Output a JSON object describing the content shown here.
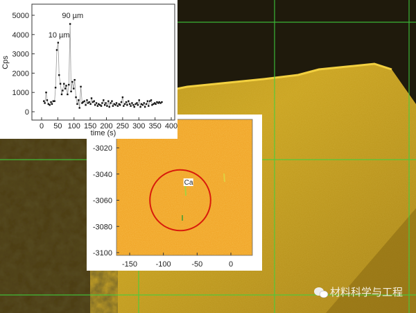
{
  "colors": {
    "grid_lines": "#3fd13f",
    "oxide_layer": "#1f1a0c",
    "metal": "#c9a21e",
    "map_fill": "#f0a020",
    "circle": "#d81b0b"
  },
  "watermark": {
    "text": "材料科学与工程",
    "icon": "wechat-icon"
  },
  "chart_data": [
    {
      "type": "line",
      "xlabel": "time (s)",
      "ylabel": "Cps",
      "xlim": [
        -10,
        410
      ],
      "ylim": [
        -500,
        5400
      ],
      "xticks": [
        0,
        50,
        100,
        150,
        200,
        250,
        300,
        350,
        400
      ],
      "yticks": [
        0,
        1000,
        2000,
        3000,
        4000,
        5000
      ],
      "annotations": [
        {
          "text": "10 µm",
          "x": 38,
          "y": 4000
        },
        {
          "text": "90 µm",
          "x": 80,
          "y": 5000
        }
      ],
      "x": [
        7,
        10,
        14,
        17,
        21,
        25,
        29,
        32,
        36,
        40,
        43,
        47,
        51,
        54,
        58,
        62,
        65,
        69,
        73,
        76,
        80,
        84,
        88,
        91,
        95,
        99,
        102,
        106,
        110,
        114,
        117,
        121,
        125,
        128,
        132,
        136,
        140,
        143,
        147,
        151,
        154,
        158,
        162,
        165,
        169,
        173,
        176,
        180,
        184,
        187,
        191,
        195,
        198,
        202,
        206,
        209,
        213,
        217,
        220,
        224,
        228,
        231,
        235,
        239,
        242,
        246,
        250,
        253,
        257,
        261,
        264,
        268,
        272,
        275,
        279,
        283,
        286,
        290,
        294,
        297,
        301,
        305,
        308,
        312,
        316,
        319,
        323,
        327,
        330,
        334,
        338,
        341,
        345,
        349,
        352,
        356,
        360,
        363,
        367,
        371
      ],
      "y": [
        550,
        450,
        1000,
        600,
        400,
        350,
        500,
        400,
        550,
        550,
        1250,
        3200,
        3580,
        1900,
        1450,
        900,
        1100,
        1450,
        1200,
        1350,
        900,
        1400,
        4550,
        1050,
        1550,
        1200,
        1650,
        750,
        400,
        600,
        200,
        1300,
        450,
        500,
        550,
        350,
        600,
        450,
        500,
        400,
        700,
        500,
        550,
        350,
        450,
        300,
        400,
        350,
        300,
        450,
        600,
        350,
        450,
        300,
        550,
        250,
        450,
        550,
        300,
        400,
        350,
        450,
        300,
        400,
        350,
        500,
        750,
        300,
        400,
        500,
        350,
        550,
        400,
        300,
        450,
        350,
        250,
        400,
        450,
        350,
        600,
        250,
        400,
        350,
        450,
        250,
        400,
        550,
        300,
        550,
        600,
        350,
        400,
        450,
        400,
        500,
        450,
        500,
        450,
        500
      ]
    },
    {
      "type": "heatmap",
      "xlim": [
        -175,
        35
      ],
      "ylim": [
        -3102,
        -3008
      ],
      "xticks": [
        -150,
        -100,
        -50,
        0
      ],
      "yticks": [
        -3020,
        -3040,
        -3060,
        -3080,
        -3100
      ],
      "annotations": [
        {
          "text": "Ca",
          "x": -62,
          "y": -3046
        }
      ],
      "circle": {
        "cx": -75,
        "cy": -3060,
        "r": 45
      }
    }
  ]
}
